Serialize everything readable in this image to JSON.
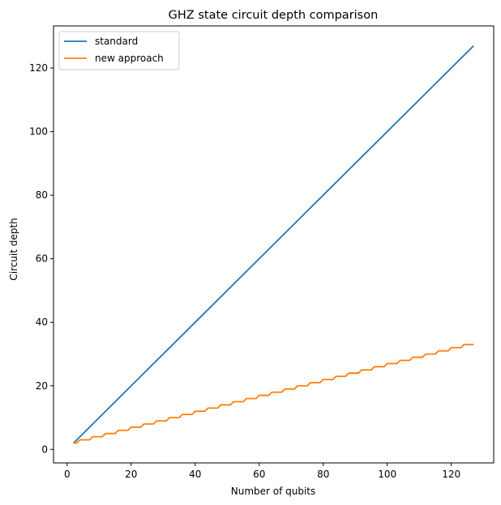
{
  "chart_data": {
    "type": "line",
    "title": "GHZ state circuit depth comparison",
    "xlabel": "Number of qubits",
    "ylabel": "Circuit depth",
    "xlim": [
      -4.25,
      133.25
    ],
    "ylim": [
      -4.25,
      133.25
    ],
    "xticks": [
      0,
      20,
      40,
      60,
      80,
      100,
      120
    ],
    "yticks": [
      0,
      20,
      40,
      60,
      80,
      100,
      120
    ],
    "grid": false,
    "legend_position": "upper left",
    "series": [
      {
        "name": "standard",
        "color": "#1f77b4",
        "x": [
          2,
          127
        ],
        "y": [
          2,
          127
        ]
      },
      {
        "name": "new approach",
        "color": "#ff7f0e",
        "rule": "depth = floor(n/4) + 2 for n = 2..127 (staircase)",
        "x_start": 2,
        "x_end": 127
      }
    ]
  }
}
